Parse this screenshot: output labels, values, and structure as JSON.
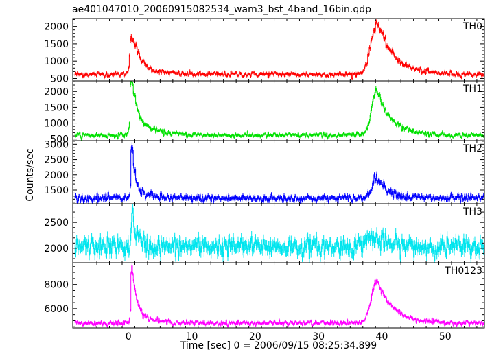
{
  "chart_data": {
    "type": "line",
    "title": "ae401047010_20060915082534_wam3_bst_4band_16bin.qdp",
    "xlabel": "Time [sec] 0 = 2006/09/15 08:25:34.899",
    "ylabel": "Counts/sec",
    "xlim": [
      -8.8,
      56.2
    ],
    "x_ticks": [
      0,
      10,
      20,
      30,
      40,
      50
    ],
    "x_tick_labels": [
      "0",
      "10",
      "20",
      "30",
      "40",
      "50"
    ],
    "grid": false,
    "panels": [
      {
        "name": "TH0",
        "color": "#ff0000",
        "ylim": [
          430,
          2230
        ],
        "y_ticks": [
          500,
          1000,
          1500,
          2000
        ],
        "y_tick_labels": [
          "500",
          "1000",
          "1500",
          "2000"
        ],
        "baseline": 620,
        "noise": 45,
        "bursts": [
          {
            "t0": 0.4,
            "peak": 1000,
            "rise": 0.25,
            "decay": 0.9
          },
          {
            "t0": 1.2,
            "peak": 380,
            "rise": 0.9,
            "decay": 2.2
          },
          {
            "t0": 39.3,
            "peak": 1500,
            "rise": 1.4,
            "decay": 2.6
          }
        ]
      },
      {
        "name": "TH1",
        "color": "#00e000",
        "ylim": [
          450,
          2330
        ],
        "y_ticks": [
          500,
          1000,
          1500,
          2000
        ],
        "y_tick_labels": [
          "500",
          "1000",
          "1500",
          "2000"
        ],
        "baseline": 620,
        "noise": 45,
        "bursts": [
          {
            "t0": 0.4,
            "peak": 1700,
            "rise": 0.15,
            "decay": 0.6
          },
          {
            "t0": 1.0,
            "peak": 600,
            "rise": 0.8,
            "decay": 2.5
          },
          {
            "t0": 39.2,
            "peak": 1400,
            "rise": 1.2,
            "decay": 2.4
          }
        ]
      },
      {
        "name": "TH2",
        "color": "#0000ff",
        "ylim": [
          1050,
          3120
        ],
        "y_ticks": [
          1500,
          2000,
          2500,
          3000
        ],
        "y_tick_labels": [
          "1500",
          "2000",
          "2500",
          "3000"
        ],
        "baseline": 1230,
        "noise": 75,
        "bursts": [
          {
            "t0": 0.5,
            "peak": 1800,
            "rise": 0.15,
            "decay": 0.45
          },
          {
            "t0": 1.0,
            "peak": 300,
            "rise": 0.6,
            "decay": 1.8
          },
          {
            "t0": 39.3,
            "peak": 700,
            "rise": 1.2,
            "decay": 1.8
          }
        ]
      },
      {
        "name": "TH3",
        "color": "#00e5ee",
        "ylim": [
          1720,
          2860
        ],
        "y_ticks": [
          2000,
          2500
        ],
        "y_tick_labels": [
          "2000",
          "2500"
        ],
        "baseline": 2030,
        "noise": 110,
        "bursts": [
          {
            "t0": 0.6,
            "peak": 650,
            "rise": 0.2,
            "decay": 0.7
          },
          {
            "t0": 38.5,
            "peak": 180,
            "rise": 1.5,
            "decay": 2.0
          }
        ]
      },
      {
        "name": "TH0123",
        "color": "#ff00ff",
        "ylim": [
          4400,
          9800
        ],
        "y_ticks": [
          6000,
          8000
        ],
        "y_tick_labels": [
          "6000",
          "8000"
        ],
        "baseline": 4800,
        "noise": 120,
        "bursts": [
          {
            "t0": 0.5,
            "peak": 4600,
            "rise": 0.15,
            "decay": 0.6
          },
          {
            "t0": 1.0,
            "peak": 1000,
            "rise": 0.7,
            "decay": 2.2
          },
          {
            "t0": 39.3,
            "peak": 3500,
            "rise": 1.3,
            "decay": 2.5
          }
        ]
      }
    ],
    "bin_width": 0.125
  }
}
